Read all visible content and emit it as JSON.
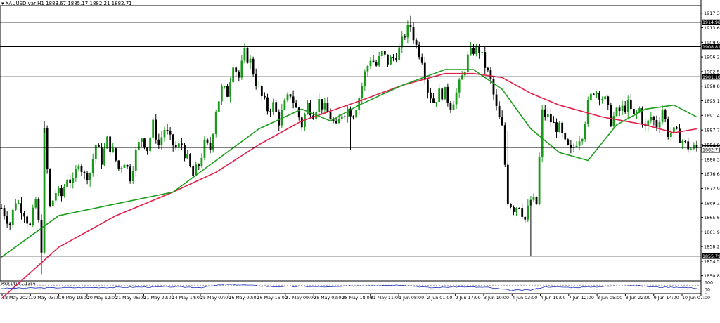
{
  "header": {
    "symbol": "XAUUSD.var,H1",
    "ohlc": "1883.67 1885.17 1882.21 1882.71"
  },
  "rsi_panel": {
    "label": "RSI(14) 31.1356",
    "ticks": [
      "100",
      "30",
      "0"
    ]
  },
  "colors": {
    "bull": "#1a9a1a",
    "bear": "#000000",
    "ma_fast": "#1e9e1e",
    "ma_slow": "#e0204a",
    "rsi": "#2433b8",
    "level_label_bg": "#000000"
  },
  "chart_data": {
    "type": "candlestick",
    "title": "XAUUSD.var,H1",
    "ylim": [
      1849.5,
      1919.2
    ],
    "y_ticks": [
      "1917.30",
      "1913.60",
      "1909.90",
      "1906.20",
      "1902.50",
      "1898.80",
      "1895.10",
      "1891.40",
      "1887.70",
      "1884.00",
      "1880.30",
      "1876.60",
      "1872.90",
      "1869.20",
      "1865.60",
      "1861.90",
      "1858.20",
      "1854.50",
      "1850.80"
    ],
    "x_labels": [
      "18 May 2021",
      "19 May 03:00",
      "19 May 19:00",
      "20 May 12:00",
      "21 May 05:00",
      "21 May 22:00",
      "24 May 14:00",
      "25 May 07:00",
      "26 May 00:00",
      "26 May 16:00",
      "27 May 09:00",
      "28 May 02:00",
      "28 May 18:00",
      "31 May 11:00",
      "1 Jun 08:00",
      "2 Jun 01:00",
      "2 Jun 17:00",
      "3 Jun 10:00",
      "4 Jun 03:00",
      "4 Jun 19:00",
      "7 Jun 12:00",
      "8 Jun 05:00",
      "8 Jun 22:00",
      "9 Jun 14:00",
      "10 Jun 07:00"
    ],
    "levels": [
      {
        "value": 1914.98,
        "label": "1914.98"
      },
      {
        "value": 1908.81,
        "label": "1908.81"
      },
      {
        "value": 1901.18,
        "label": "1901.18"
      },
      {
        "value": 1883.29,
        "label": "1883.29"
      },
      {
        "value": 1855.79,
        "label": "1855.79"
      }
    ],
    "current_price": {
      "value": 1882.71,
      "label": "1882.71"
    },
    "close_path": [
      [
        0,
        1868
      ],
      [
        3,
        1864
      ],
      [
        5,
        1870
      ],
      [
        8,
        1867
      ],
      [
        10,
        1863
      ],
      [
        12,
        1870
      ],
      [
        14,
        1858
      ],
      [
        15,
        1887
      ],
      [
        17,
        1868
      ],
      [
        19,
        1872
      ],
      [
        21,
        1871
      ],
      [
        23,
        1876
      ],
      [
        25,
        1874
      ],
      [
        27,
        1880
      ],
      [
        29,
        1876
      ],
      [
        31,
        1877
      ],
      [
        33,
        1884
      ],
      [
        35,
        1880
      ],
      [
        37,
        1885
      ],
      [
        39,
        1882
      ],
      [
        41,
        1878
      ],
      [
        43,
        1880
      ],
      [
        45,
        1876
      ],
      [
        47,
        1882
      ],
      [
        49,
        1886
      ],
      [
        51,
        1883
      ],
      [
        53,
        1889
      ],
      [
        55,
        1884
      ],
      [
        57,
        1888
      ],
      [
        59,
        1885
      ],
      [
        61,
        1883
      ],
      [
        63,
        1884
      ],
      [
        65,
        1880
      ],
      [
        67,
        1876
      ],
      [
        69,
        1879
      ],
      [
        71,
        1884
      ],
      [
        73,
        1883
      ],
      [
        75,
        1893
      ],
      [
        77,
        1898
      ],
      [
        79,
        1897
      ],
      [
        81,
        1905
      ],
      [
        83,
        1901
      ],
      [
        85,
        1907
      ],
      [
        87,
        1905
      ],
      [
        89,
        1900
      ],
      [
        91,
        1896
      ],
      [
        93,
        1893
      ],
      [
        95,
        1894
      ],
      [
        97,
        1890
      ],
      [
        99,
        1894
      ],
      [
        101,
        1897
      ],
      [
        103,
        1893
      ],
      [
        105,
        1889
      ],
      [
        107,
        1894
      ],
      [
        109,
        1892
      ],
      [
        111,
        1895
      ],
      [
        113,
        1893
      ],
      [
        115,
        1891
      ],
      [
        117,
        1888
      ],
      [
        119,
        1892
      ],
      [
        121,
        1893
      ],
      [
        123,
        1892
      ],
      [
        125,
        1896
      ],
      [
        127,
        1902
      ],
      [
        129,
        1906
      ],
      [
        131,
        1904
      ],
      [
        133,
        1907
      ],
      [
        135,
        1905
      ],
      [
        137,
        1906
      ],
      [
        139,
        1908
      ],
      [
        141,
        1912
      ],
      [
        143,
        1914
      ],
      [
        145,
        1909
      ],
      [
        147,
        1906
      ],
      [
        149,
        1898
      ],
      [
        151,
        1895
      ],
      [
        153,
        1897
      ],
      [
        155,
        1897
      ],
      [
        157,
        1894
      ],
      [
        159,
        1897
      ],
      [
        161,
        1901
      ],
      [
        163,
        1906
      ],
      [
        165,
        1908
      ],
      [
        167,
        1908
      ],
      [
        169,
        1904
      ],
      [
        171,
        1900
      ],
      [
        173,
        1893
      ],
      [
        175,
        1888
      ],
      [
        177,
        1870
      ],
      [
        179,
        1868
      ],
      [
        181,
        1869
      ],
      [
        183,
        1865
      ],
      [
        185,
        1870
      ],
      [
        187,
        1869
      ],
      [
        189,
        1892
      ],
      [
        191,
        1891
      ],
      [
        193,
        1889
      ],
      [
        195,
        1888
      ],
      [
        197,
        1884
      ],
      [
        199,
        1882
      ],
      [
        201,
        1885
      ],
      [
        203,
        1887
      ],
      [
        205,
        1894
      ],
      [
        207,
        1898
      ],
      [
        209,
        1897
      ],
      [
        211,
        1895
      ],
      [
        213,
        1890
      ],
      [
        215,
        1892
      ],
      [
        217,
        1893
      ],
      [
        219,
        1894
      ],
      [
        221,
        1891
      ],
      [
        223,
        1893
      ],
      [
        225,
        1888
      ],
      [
        227,
        1891
      ],
      [
        229,
        1889
      ],
      [
        231,
        1893
      ],
      [
        233,
        1887
      ],
      [
        235,
        1887
      ],
      [
        237,
        1886
      ],
      [
        239,
        1884
      ],
      [
        241,
        1883
      ]
    ],
    "ma_fast": [
      [
        0,
        1855.5
      ],
      [
        20,
        1866
      ],
      [
        40,
        1869
      ],
      [
        60,
        1872
      ],
      [
        75,
        1880
      ],
      [
        90,
        1888
      ],
      [
        105,
        1893
      ],
      [
        115,
        1890
      ],
      [
        125,
        1894
      ],
      [
        140,
        1899
      ],
      [
        155,
        1903
      ],
      [
        165,
        1903
      ],
      [
        175,
        1898
      ],
      [
        185,
        1888
      ],
      [
        195,
        1882
      ],
      [
        205,
        1880
      ],
      [
        215,
        1889
      ],
      [
        225,
        1893
      ],
      [
        235,
        1894
      ],
      [
        243,
        1891
      ]
    ],
    "ma_slow": [
      [
        0,
        1845
      ],
      [
        20,
        1858
      ],
      [
        40,
        1866
      ],
      [
        60,
        1872
      ],
      [
        75,
        1877
      ],
      [
        90,
        1884
      ],
      [
        105,
        1890
      ],
      [
        125,
        1895
      ],
      [
        140,
        1899
      ],
      [
        155,
        1902
      ],
      [
        165,
        1902
      ],
      [
        175,
        1901
      ],
      [
        185,
        1897
      ],
      [
        195,
        1894
      ],
      [
        210,
        1891
      ],
      [
        225,
        1889
      ],
      [
        235,
        1887
      ],
      [
        243,
        1888
      ]
    ],
    "rsi": [
      [
        0,
        38
      ],
      [
        10,
        42
      ],
      [
        20,
        45
      ],
      [
        30,
        47
      ],
      [
        40,
        48
      ],
      [
        50,
        52
      ],
      [
        60,
        54
      ],
      [
        70,
        48
      ],
      [
        78,
        78
      ],
      [
        85,
        72
      ],
      [
        95,
        55
      ],
      [
        105,
        58
      ],
      [
        115,
        52
      ],
      [
        125,
        65
      ],
      [
        140,
        72
      ],
      [
        150,
        45
      ],
      [
        160,
        55
      ],
      [
        170,
        48
      ],
      [
        178,
        18
      ],
      [
        185,
        22
      ],
      [
        190,
        55
      ],
      [
        200,
        48
      ],
      [
        210,
        56
      ],
      [
        220,
        68
      ],
      [
        230,
        50
      ],
      [
        236,
        52
      ],
      [
        243,
        40
      ]
    ]
  }
}
